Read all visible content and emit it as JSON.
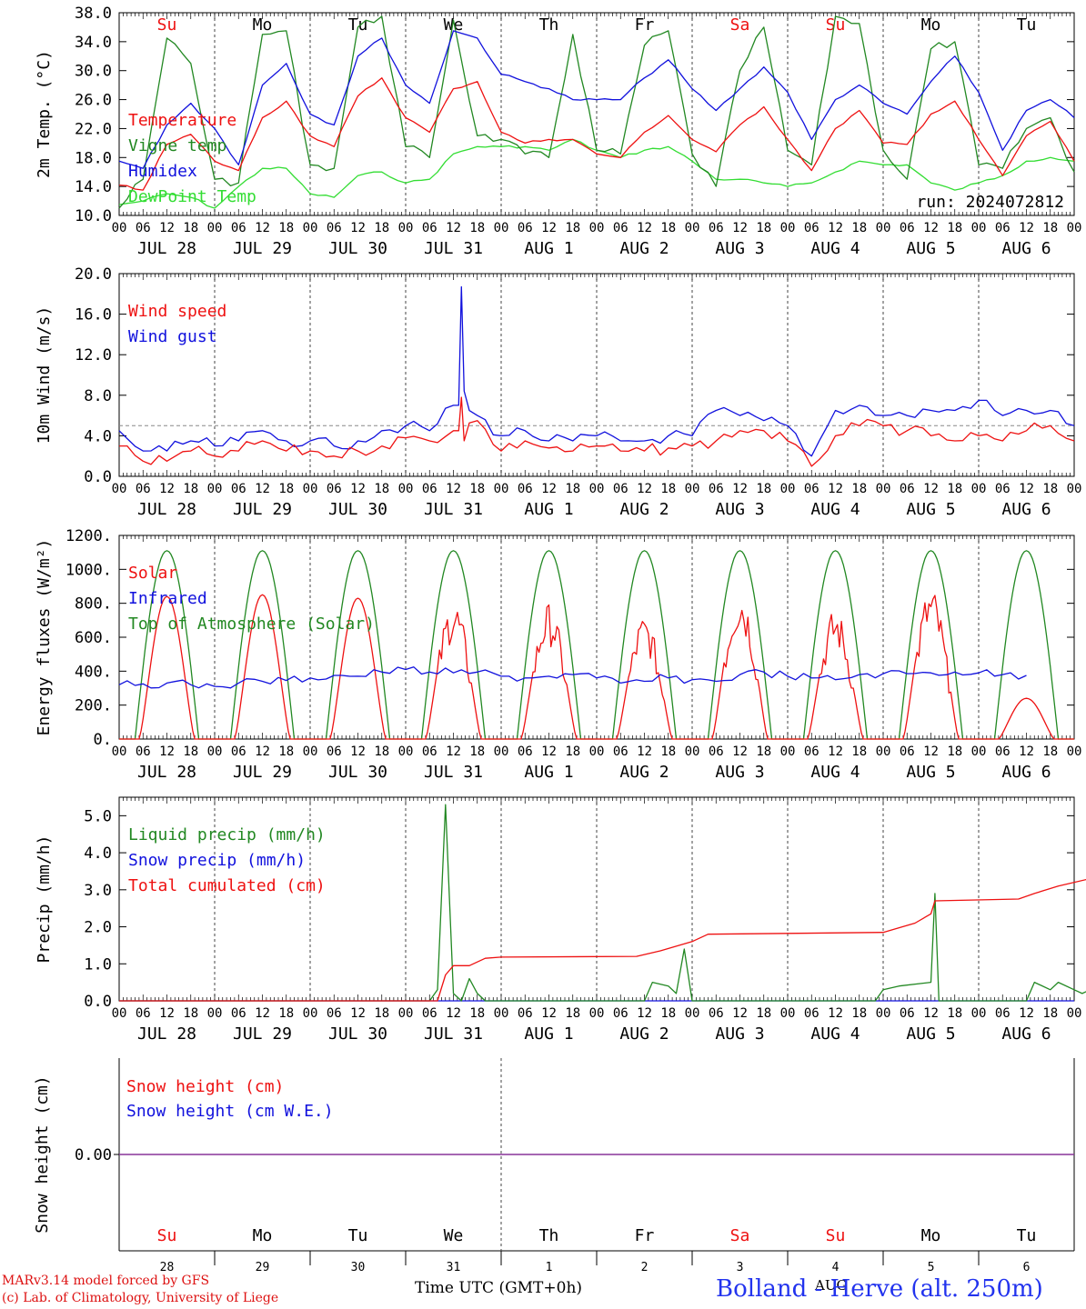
{
  "colors": {
    "temperature": "#ee1111",
    "vigne": "#228822",
    "humidex": "#1111dd",
    "dewpoint": "#33dd33",
    "wind_speed": "#ee1111",
    "wind_gust": "#1111dd",
    "solar": "#ee1111",
    "infrared": "#1111dd",
    "toa": "#228822",
    "liquid": "#228822",
    "snow_precip": "#1111dd",
    "cumulated": "#ee1111",
    "snow_cm": "#ee1111",
    "snow_we": "#1111dd",
    "snow_line": "#883399",
    "weekend": "#ee1111",
    "weekday": "#000000",
    "threshold": "#888888"
  },
  "days": [
    {
      "label": "JUL 28",
      "dow": "Su",
      "num": "28",
      "weekend": true
    },
    {
      "label": "JUL 29",
      "dow": "Mo",
      "num": "29",
      "weekend": false
    },
    {
      "label": "JUL 30",
      "dow": "Tu",
      "num": "30",
      "weekend": false
    },
    {
      "label": "JUL 31",
      "dow": "We",
      "num": "31",
      "weekend": false
    },
    {
      "label": "AUG  1",
      "dow": "Th",
      "num": "1",
      "weekend": false
    },
    {
      "label": "AUG  2",
      "dow": "Fr",
      "num": "2",
      "weekend": false
    },
    {
      "label": "AUG  3",
      "dow": "Sa",
      "num": "3",
      "weekend": true
    },
    {
      "label": "AUG  4",
      "dow": "Su",
      "num": "4",
      "weekend": true
    },
    {
      "label": "AUG  5",
      "dow": "Mo",
      "num": "5",
      "weekend": false
    },
    {
      "label": "AUG  6",
      "dow": "Tu",
      "num": "6",
      "weekend": false
    }
  ],
  "hour_ticks": [
    "00",
    "06",
    "12",
    "18"
  ],
  "run_label": "run: 2024072812",
  "footer": {
    "model": "MARv3.14 model forced by GFS",
    "lab": "(c) Lab. of Climatology, University of Liege",
    "time_label": "Time UTC (GMT+0h)",
    "location": "Bolland - Herve (alt. 250m)",
    "overlap": "AUG"
  },
  "chart_data": [
    {
      "id": "temperature",
      "type": "line",
      "ylabel": "2m Temp. (°C)",
      "ylim": [
        10,
        38
      ],
      "yticks": [
        "10.0",
        "14.0",
        "18.0",
        "22.0",
        "26.0",
        "30.0",
        "34.0",
        "38.0"
      ],
      "ytick_values": [
        10,
        14,
        18,
        22,
        26,
        30,
        34,
        38
      ],
      "x_start": "2024-07-28 00 UTC",
      "x_step_hours": 6,
      "series": [
        {
          "name": "Temperature",
          "color_key": "temperature",
          "values": [
            14.2,
            13.5,
            19.8,
            21.2,
            17.5,
            16.2,
            23.5,
            25.8,
            21.0,
            19.5,
            26.5,
            29.0,
            23.5,
            21.5,
            27.5,
            28.5,
            21.5,
            20.0,
            20.5,
            20.5,
            18.5,
            18.0,
            21.5,
            23.8,
            20.5,
            18.8,
            22.5,
            25.0,
            20.5,
            16.2,
            22.0,
            24.5,
            20.0,
            19.8,
            24.0,
            25.8,
            20.5,
            15.5,
            21.0,
            23.0,
            17.5,
            16.8,
            18.0,
            18.5,
            18.5
          ]
        },
        {
          "name": "Vigne temp",
          "color_key": "vigne",
          "values": [
            11.0,
            15.0,
            34.5,
            31.0,
            15.0,
            14.5,
            35.0,
            35.5,
            17.0,
            16.5,
            36.0,
            37.5,
            19.5,
            18.0,
            37.0,
            21.0,
            20.5,
            18.5,
            18.0,
            35.0,
            19.0,
            18.5,
            33.5,
            35.5,
            18.5,
            14.0,
            30.0,
            36.0,
            19.0,
            17.0,
            37.5,
            36.5,
            19.0,
            15.0,
            33.0,
            34.0,
            17.0,
            16.5,
            22.0,
            23.5,
            16.0
          ]
        },
        {
          "name": "Humidex",
          "color_key": "humidex",
          "values": [
            17.5,
            16.5,
            22.5,
            25.5,
            22.0,
            17.0,
            28.0,
            31.0,
            24.0,
            22.5,
            32.0,
            34.5,
            28.0,
            25.5,
            35.5,
            34.5,
            29.5,
            28.5,
            27.5,
            26.0,
            26.0,
            26.0,
            29.0,
            31.5,
            27.5,
            24.5,
            27.5,
            30.5,
            27.0,
            20.5,
            26.0,
            28.0,
            25.5,
            24.0,
            28.5,
            32.0,
            27.0,
            19.0,
            24.5,
            26.0,
            23.5,
            22.0,
            24.0,
            25.0,
            24.0
          ]
        },
        {
          "name": "DewPoint Temp",
          "color_key": "dewpoint",
          "values": [
            11.5,
            12.0,
            13.0,
            12.5,
            11.0,
            14.0,
            16.5,
            16.5,
            13.0,
            12.5,
            15.5,
            16.0,
            14.5,
            15.0,
            18.5,
            19.5,
            19.5,
            19.5,
            19.0,
            20.5,
            19.0,
            18.0,
            19.0,
            19.5,
            17.5,
            15.0,
            15.0,
            14.5,
            14.0,
            14.5,
            16.0,
            17.5,
            17.0,
            17.0,
            14.5,
            13.5,
            14.5,
            15.5,
            17.5,
            18.0,
            17.5
          ]
        }
      ]
    },
    {
      "id": "wind",
      "type": "line",
      "ylabel": "10m Wind (m/s)",
      "ylim": [
        0,
        20
      ],
      "yticks": [
        "0.0",
        "4.0",
        "8.0",
        "12.0",
        "16.0",
        "20.0"
      ],
      "ytick_values": [
        0,
        4,
        8,
        12,
        16,
        20
      ],
      "threshold": 5,
      "x_start": "2024-07-28 00 UTC",
      "x_step_hours": 6,
      "series": [
        {
          "name": "Wind speed",
          "color_key": "wind_speed",
          "values": [
            3.0,
            1.5,
            1.5,
            2.5,
            2.0,
            2.5,
            3.5,
            2.5,
            2.5,
            2.0,
            2.5,
            3.0,
            3.8,
            3.5,
            4.5,
            5.5,
            2.5,
            3.5,
            2.8,
            2.5,
            3.0,
            2.5,
            2.5,
            2.8,
            3.0,
            3.5,
            4.5,
            4.5,
            3.5,
            1.0,
            4.0,
            5.0,
            5.0,
            4.5,
            4.0,
            3.5,
            4.0,
            3.5,
            4.5,
            5.0,
            3.5,
            1.0,
            3.0,
            2.5,
            3.2
          ]
        },
        {
          "name": "Wind gust",
          "color_key": "wind_gust",
          "values": [
            4.5,
            2.5,
            2.5,
            3.5,
            3.0,
            3.5,
            4.5,
            3.5,
            3.5,
            3.0,
            3.5,
            4.5,
            5.0,
            4.5,
            7.0,
            6.0,
            4.0,
            4.5,
            3.5,
            3.5,
            4.0,
            3.5,
            3.5,
            4.0,
            4.0,
            6.5,
            6.0,
            5.5,
            5.0,
            2.0,
            6.5,
            7.0,
            6.0,
            6.0,
            6.5,
            6.5,
            7.5,
            6.0,
            6.5,
            6.5,
            5.0,
            1.5,
            3.5,
            3.5,
            4.5
          ]
        }
      ],
      "spikes": [
        {
          "series": "Wind gust",
          "day": 3,
          "hour": 14,
          "value": 18.7
        },
        {
          "series": "Wind speed",
          "day": 3,
          "hour": 14,
          "value": 7.8
        }
      ]
    },
    {
      "id": "energy",
      "type": "line",
      "ylabel": "Energy fluxes (W/m²)",
      "ylim": [
        0,
        1200
      ],
      "yticks": [
        "0.",
        "200.",
        "400.",
        "600.",
        "800.",
        "1000.",
        "1200."
      ],
      "ytick_values": [
        0,
        200,
        400,
        600,
        800,
        1000,
        1200
      ],
      "series": [
        {
          "name": "Solar",
          "color_key": "solar",
          "daily_peaks": [
            840,
            850,
            830,
            760,
            730,
            670,
            830,
            700,
            820,
            240
          ]
        },
        {
          "name": "Infrared",
          "color_key": "infrared",
          "values": [
            320,
            325,
            330,
            320,
            310,
            330,
            340,
            345,
            360,
            375,
            370,
            395,
            410,
            395,
            390,
            395,
            370,
            360,
            370,
            380,
            360,
            330,
            340,
            360,
            350,
            340,
            380,
            395,
            370,
            360,
            350,
            380,
            385,
            385,
            390,
            395,
            390,
            380,
            375
          ]
        },
        {
          "name": "Top of Atmosphere (Solar)",
          "color_key": "toa",
          "daily_peak": 1110,
          "sunrise_hour": 4,
          "sunset_hour": 20
        }
      ]
    },
    {
      "id": "precip",
      "type": "line",
      "ylabel": "Precip (mm/h)",
      "ylim": [
        0,
        5.5
      ],
      "yticks": [
        "0.0",
        "1.0",
        "2.0",
        "3.0",
        "4.0",
        "5.0"
      ],
      "ytick_values": [
        0,
        1,
        2,
        3,
        4,
        5
      ],
      "series": [
        {
          "name": "Liquid precip (mm/h)",
          "color_key": "liquid",
          "points": [
            [
              0,
              0
            ],
            [
              78,
              0
            ],
            [
              80,
              0.3
            ],
            [
              82,
              5.3
            ],
            [
              84,
              0.2
            ],
            [
              86,
              0
            ],
            [
              88,
              0.6
            ],
            [
              90,
              0.2
            ],
            [
              92,
              0
            ],
            [
              132,
              0
            ],
            [
              134,
              0.5
            ],
            [
              138,
              0.4
            ],
            [
              140,
              0.2
            ],
            [
              142,
              1.4
            ],
            [
              144,
              0
            ],
            [
              190,
              0
            ],
            [
              192,
              0.3
            ],
            [
              196,
              0.4
            ],
            [
              204,
              0.5
            ],
            [
              205,
              2.9
            ],
            [
              206,
              0
            ],
            [
              228,
              0
            ],
            [
              230,
              0.5
            ],
            [
              234,
              0.3
            ],
            [
              236,
              0.5
            ],
            [
              240,
              0.3
            ],
            [
              242,
              0.2
            ],
            [
              246,
              0.4
            ],
            [
              248,
              0
            ],
            [
              252,
              0.5
            ],
            [
              256,
              0
            ]
          ]
        },
        {
          "name": "Snow precip (mm/h)",
          "color_key": "snow_precip",
          "points": [
            [
              0,
              0
            ],
            [
              240,
              0
            ]
          ]
        },
        {
          "name": "Total cumulated (cm)",
          "color_key": "cumulated",
          "points": [
            [
              0,
              0
            ],
            [
              80,
              0
            ],
            [
              82,
              0.7
            ],
            [
              84,
              0.95
            ],
            [
              88,
              0.95
            ],
            [
              92,
              1.15
            ],
            [
              96,
              1.18
            ],
            [
              130,
              1.2
            ],
            [
              136,
              1.35
            ],
            [
              144,
              1.6
            ],
            [
              148,
              1.8
            ],
            [
              192,
              1.85
            ],
            [
              200,
              2.1
            ],
            [
              204,
              2.35
            ],
            [
              205,
              2.7
            ],
            [
              226,
              2.75
            ],
            [
              230,
              2.9
            ],
            [
              236,
              3.1
            ],
            [
              244,
              3.3
            ],
            [
              250,
              3.42
            ]
          ]
        }
      ]
    },
    {
      "id": "snow",
      "type": "line",
      "ylabel": "Snow height (cm)",
      "yticks": [
        "0.00"
      ],
      "ytick_values": [
        0
      ],
      "series": [
        {
          "name": "Snow height (cm)",
          "color_key": "snow_cm",
          "values": [
            0,
            0
          ]
        },
        {
          "name": "Snow height (cm W.E.)",
          "color_key": "snow_we",
          "values": [
            0,
            0
          ]
        }
      ]
    }
  ]
}
